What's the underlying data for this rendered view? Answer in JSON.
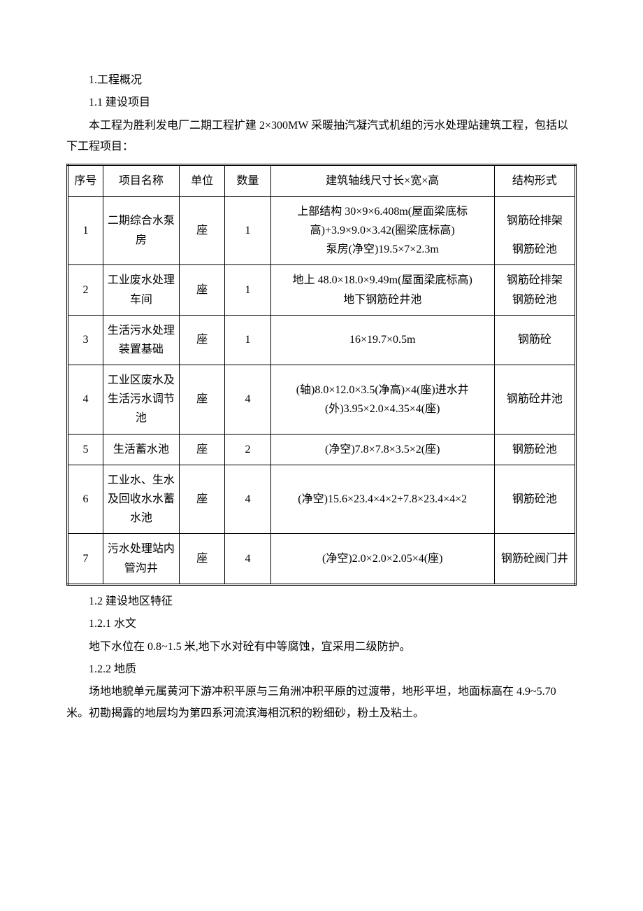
{
  "headings": {
    "s1": "1.工程概况",
    "s1_1": "1.1 建设项目",
    "s1_2": "1.2 建设地区特征",
    "s1_2_1": "1.2.1 水文",
    "s1_2_2": "1.2.2 地质"
  },
  "paragraphs": {
    "intro": "本工程为胜利发电厂二期工程扩建 2×300MW 采暖抽汽凝汽式机组的污水处理站建筑工程，包括以下工程项目：",
    "hydro": "地下水位在 0.8~1.5 米,地下水对砼有中等腐蚀，宜采用二级防护。",
    "geo": "场地地貌单元属黄河下游冲积平原与三角洲冲积平原的过渡带，地形平坦，地面标高在 4.9~5.70 米。初勘揭露的地层均为第四系河流滨海相沉积的粉细砂，粉土及粘土。"
  },
  "table": {
    "headers": {
      "seq": "序号",
      "name": "项目名称",
      "unit": "单位",
      "qty": "数量",
      "dims": "建筑轴线尺寸长×宽×高",
      "struct": "结构形式"
    },
    "rows": [
      {
        "seq": "1",
        "name": "二期综合水泵房",
        "unit": "座",
        "qty": "1",
        "dims_a": "上部结构 30×9×6.408m(屋面梁底标高)+3.9×9.0×3.42(圈梁底标高)",
        "dims_b": "泵房(净空)19.5×7×2.3m",
        "struct_a": "钢筋砼排架",
        "struct_b": "钢筋砼池"
      },
      {
        "seq": "2",
        "name": "工业废水处理车间",
        "unit": "座",
        "qty": "1",
        "dims_a": "地上 48.0×18.0×9.49m(屋面梁底标高)",
        "dims_b": "地下钢筋砼井池",
        "struct_a": "钢筋砼排架",
        "struct_b": "钢筋砼池"
      },
      {
        "seq": "3",
        "name": "生活污水处理装置基础",
        "unit": "座",
        "qty": "1",
        "dims": "16×19.7×0.5m",
        "struct": "钢筋砼"
      },
      {
        "seq": "4",
        "name": "工业区废水及生活污水调节池",
        "unit": "座",
        "qty": "4",
        "dims": "(轴)8.0×12.0×3.5(净高)×4(座)进水井　(外)3.95×2.0×4.35×4(座)",
        "struct": "钢筋砼井池"
      },
      {
        "seq": "5",
        "name": "生活蓄水池",
        "unit": "座",
        "qty": "2",
        "dims": "(净空)7.8×7.8×3.5×2(座)",
        "struct": "钢筋砼池"
      },
      {
        "seq": "6",
        "name": "工业水、生水及回收水水蓄水池",
        "unit": "座",
        "qty": "4",
        "dims": "(净空)15.6×23.4×4×2+7.8×23.4×4×2",
        "struct": "钢筋砼池"
      },
      {
        "seq": "7",
        "name": "污水处理站内管沟井",
        "unit": "座",
        "qty": "4",
        "dims": "(净空)2.0×2.0×2.05×4(座)",
        "struct": "钢筋砼阀门井"
      }
    ]
  },
  "style": {
    "font_family": "SimSun",
    "text_color": "#000000",
    "background_color": "#ffffff",
    "body_fontsize": 16,
    "table_border_color": "#000000"
  }
}
